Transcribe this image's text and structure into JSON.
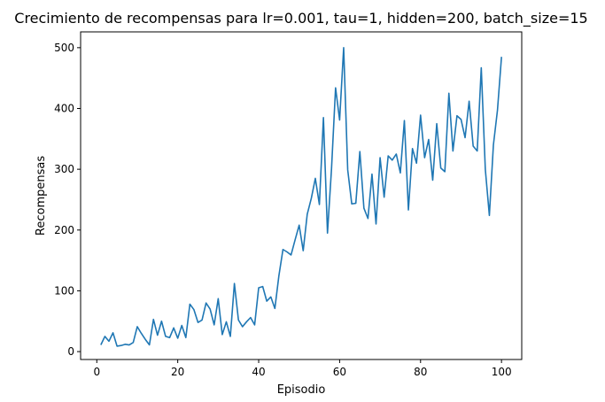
{
  "chart_data": {
    "type": "line",
    "title": "Crecimiento de recompensas para lr=0.001, tau=1, hidden=200, batch_size=15",
    "xlabel": "Episodio",
    "ylabel": "Recompensas",
    "xlim": [
      -4.0,
      105.0
    ],
    "ylim": [
      -13.0,
      526.0
    ],
    "xticks": [
      0,
      20,
      40,
      60,
      80,
      100
    ],
    "yticks": [
      0,
      100,
      200,
      300,
      400,
      500
    ],
    "grid": false,
    "line_color": "#1f77b4",
    "x": [
      1,
      2,
      3,
      4,
      5,
      6,
      7,
      8,
      9,
      10,
      11,
      12,
      13,
      14,
      15,
      16,
      17,
      18,
      19,
      20,
      21,
      22,
      23,
      24,
      25,
      26,
      27,
      28,
      29,
      30,
      31,
      32,
      33,
      34,
      35,
      36,
      37,
      38,
      39,
      40,
      41,
      42,
      43,
      44,
      45,
      46,
      47,
      48,
      49,
      50,
      51,
      52,
      53,
      54,
      55,
      56,
      57,
      58,
      59,
      60,
      61,
      62,
      63,
      64,
      65,
      66,
      67,
      68,
      69,
      70,
      71,
      72,
      73,
      74,
      75,
      76,
      77,
      78,
      79,
      80,
      81,
      82,
      83,
      84,
      85,
      86,
      87,
      88,
      89,
      90,
      91,
      92,
      93,
      94,
      95,
      96,
      97,
      98,
      99,
      100
    ],
    "values": [
      11,
      25,
      17,
      31,
      9,
      10,
      12,
      11,
      15,
      41,
      30,
      20,
      11,
      53,
      27,
      50,
      25,
      23,
      39,
      22,
      43,
      23,
      78,
      69,
      48,
      52,
      80,
      70,
      44,
      87,
      28,
      49,
      25,
      112,
      52,
      41,
      49,
      56,
      44,
      105,
      107,
      83,
      90,
      71,
      125,
      168,
      164,
      159,
      184,
      208,
      166,
      226,
      252,
      285,
      242,
      385,
      195,
      301,
      434,
      381,
      500,
      299,
      243,
      244,
      329,
      236,
      219,
      292,
      210,
      319,
      254,
      322,
      315,
      325,
      294,
      380,
      233,
      334,
      310,
      389,
      319,
      349,
      282,
      375,
      302,
      296,
      425,
      330,
      388,
      382,
      352,
      412,
      338,
      330,
      467,
      300,
      224,
      340,
      397,
      485
    ]
  }
}
